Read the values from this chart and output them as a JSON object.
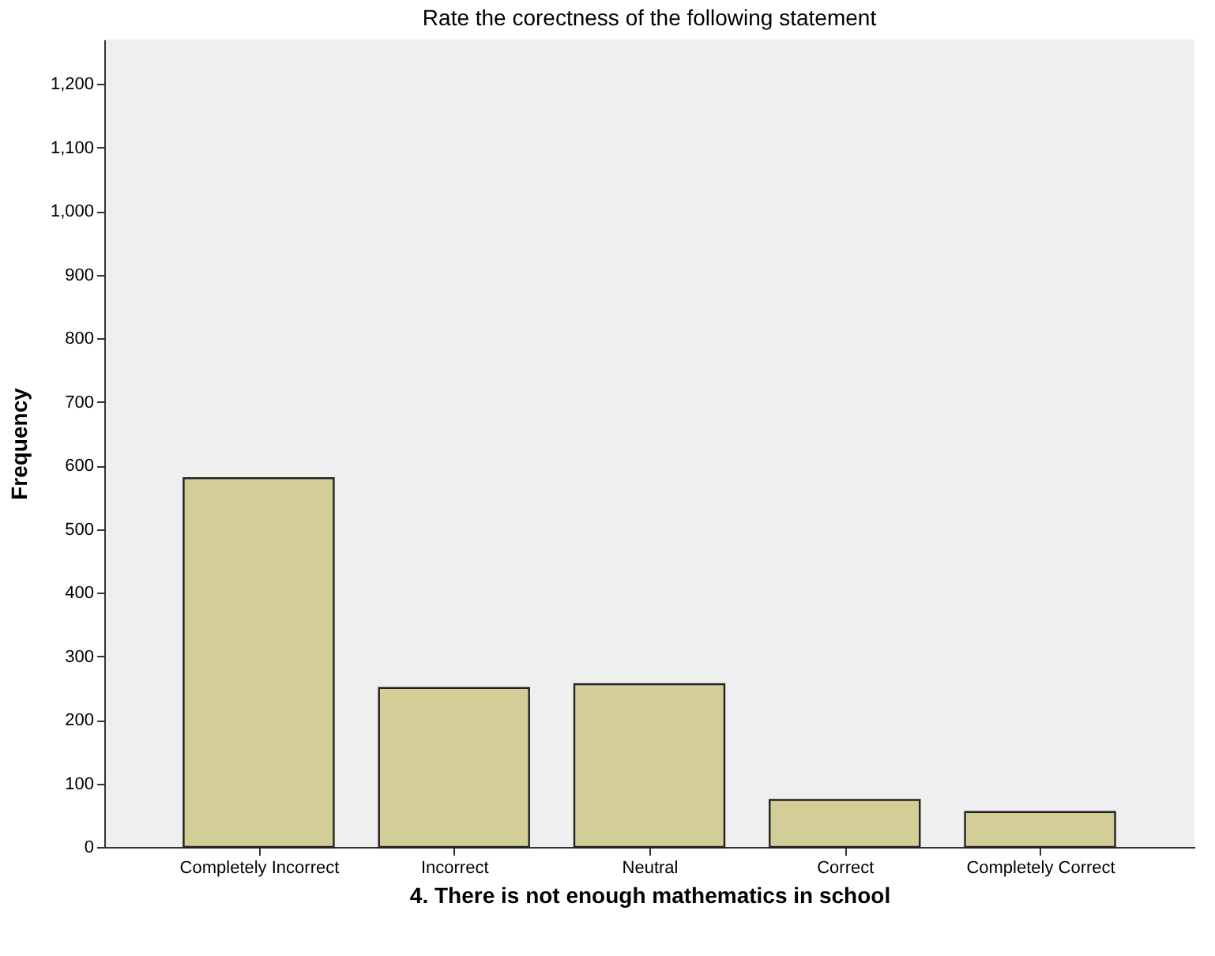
{
  "chart_data": {
    "type": "bar",
    "title": "Rate the corectness of the following statement",
    "xlabel": "4. There is not enough mathematics in school",
    "ylabel": "Frequency",
    "categories": [
      "Completely Incorrect",
      "Incorrect",
      "Neutral",
      "Correct",
      "Completely Correct"
    ],
    "values": [
      580,
      250,
      256,
      74,
      55
    ],
    "color": "#d3ce97",
    "ylim": [
      0,
      1270
    ],
    "yticks": [
      0,
      100,
      200,
      300,
      400,
      500,
      600,
      700,
      800,
      900,
      {
        "value": 1000,
        "label": "1,000"
      },
      {
        "value": 1100,
        "label": "1,100"
      },
      {
        "value": 1200,
        "label": "1,200"
      }
    ],
    "grid": false
  }
}
